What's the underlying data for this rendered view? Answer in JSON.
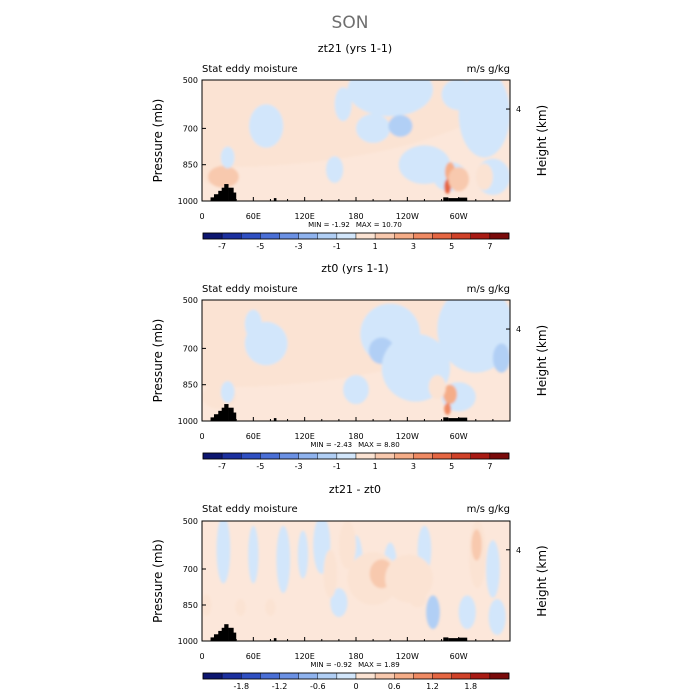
{
  "title": "SON",
  "chart_data": {
    "type": "heatmap",
    "colors": {
      "positive": [
        "#fbe3d3",
        "#f8c9ae",
        "#f5ad88",
        "#ef8a63",
        "#e56642",
        "#cf4128",
        "#a91b14",
        "#7a0a0a"
      ],
      "negative": [
        "#d2e6fb",
        "#b1cff5",
        "#8fb3ee",
        "#6b91e4",
        "#4a6fd6",
        "#2f4fc2",
        "#1b2f9e",
        "#0d1670"
      ],
      "background": "#fce7da",
      "topography": "#000000"
    },
    "panels": [
      {
        "title": "zt21 (yrs 1-1)",
        "left_label": "Stat eddy moisture",
        "right_label": "m/s g/kg",
        "ylabel": "Pressure (mb)",
        "ylabel_right": "Height (km)",
        "y_ticks": [
          "500",
          "700",
          "850",
          "1000"
        ],
        "y_tick_values": [
          500,
          700,
          850,
          1000
        ],
        "y_right_ticks": [
          "4"
        ],
        "y_right_tick_values": [
          620
        ],
        "x_ticks": [
          "0",
          "60E",
          "120E",
          "180",
          "120W",
          "60W"
        ],
        "x_tick_values": [
          0,
          60,
          120,
          180,
          240,
          300
        ],
        "xlim": [
          0,
          360
        ],
        "ylim": [
          1000,
          500
        ],
        "min_label": "MIN =",
        "min_value": "-1.92",
        "max_label": "MAX =",
        "max_value": "10.70",
        "colorbar_labels": [
          "-7",
          "-5",
          "-3",
          "-1",
          "1",
          "3",
          "5",
          "7"
        ],
        "colorbar_levels": [
          -8,
          -7,
          -6,
          -5,
          -4,
          -3,
          -2,
          -1,
          0,
          1,
          2,
          3,
          4,
          5,
          6,
          7,
          8
        ]
      },
      {
        "title": "zt0 (yrs 1-1)",
        "left_label": "Stat eddy moisture",
        "right_label": "m/s g/kg",
        "ylabel": "Pressure (mb)",
        "ylabel_right": "Height (km)",
        "y_ticks": [
          "500",
          "700",
          "850",
          "1000"
        ],
        "y_tick_values": [
          500,
          700,
          850,
          1000
        ],
        "y_right_ticks": [
          "4"
        ],
        "y_right_tick_values": [
          620
        ],
        "x_ticks": [
          "0",
          "60E",
          "120E",
          "180",
          "120W",
          "60W"
        ],
        "x_tick_values": [
          0,
          60,
          120,
          180,
          240,
          300
        ],
        "xlim": [
          0,
          360
        ],
        "ylim": [
          1000,
          500
        ],
        "min_label": "MIN =",
        "min_value": "-2.43",
        "max_label": "MAX =",
        "max_value": "8.80",
        "colorbar_labels": [
          "-7",
          "-5",
          "-3",
          "-1",
          "1",
          "3",
          "5",
          "7"
        ],
        "colorbar_levels": [
          -8,
          -7,
          -6,
          -5,
          -4,
          -3,
          -2,
          -1,
          0,
          1,
          2,
          3,
          4,
          5,
          6,
          7,
          8
        ]
      },
      {
        "title": "zt21 - zt0",
        "left_label": "Stat eddy moisture",
        "right_label": "m/s g/kg",
        "ylabel": "Pressure (mb)",
        "ylabel_right": "Height (km)",
        "y_ticks": [
          "500",
          "700",
          "850",
          "1000"
        ],
        "y_tick_values": [
          500,
          700,
          850,
          1000
        ],
        "y_right_ticks": [
          "4"
        ],
        "y_right_tick_values": [
          620
        ],
        "x_ticks": [
          "0",
          "60E",
          "120E",
          "180",
          "120W",
          "60W"
        ],
        "x_tick_values": [
          0,
          60,
          120,
          180,
          240,
          300
        ],
        "xlim": [
          0,
          360
        ],
        "ylim": [
          1000,
          500
        ],
        "min_label": "MIN =",
        "min_value": "-0.92",
        "max_label": "MAX =",
        "max_value": "1.89",
        "colorbar_labels": [
          "-1.8",
          "-1.2",
          "-0.6",
          "0",
          "0.6",
          "1.2",
          "1.8"
        ],
        "colorbar_levels": [
          -2.4,
          -2.1,
          -1.8,
          -1.5,
          -1.2,
          -0.9,
          -0.6,
          -0.3,
          0,
          0.3,
          0.6,
          0.9,
          1.2,
          1.5,
          1.8,
          2.1,
          2.4
        ]
      }
    ]
  }
}
